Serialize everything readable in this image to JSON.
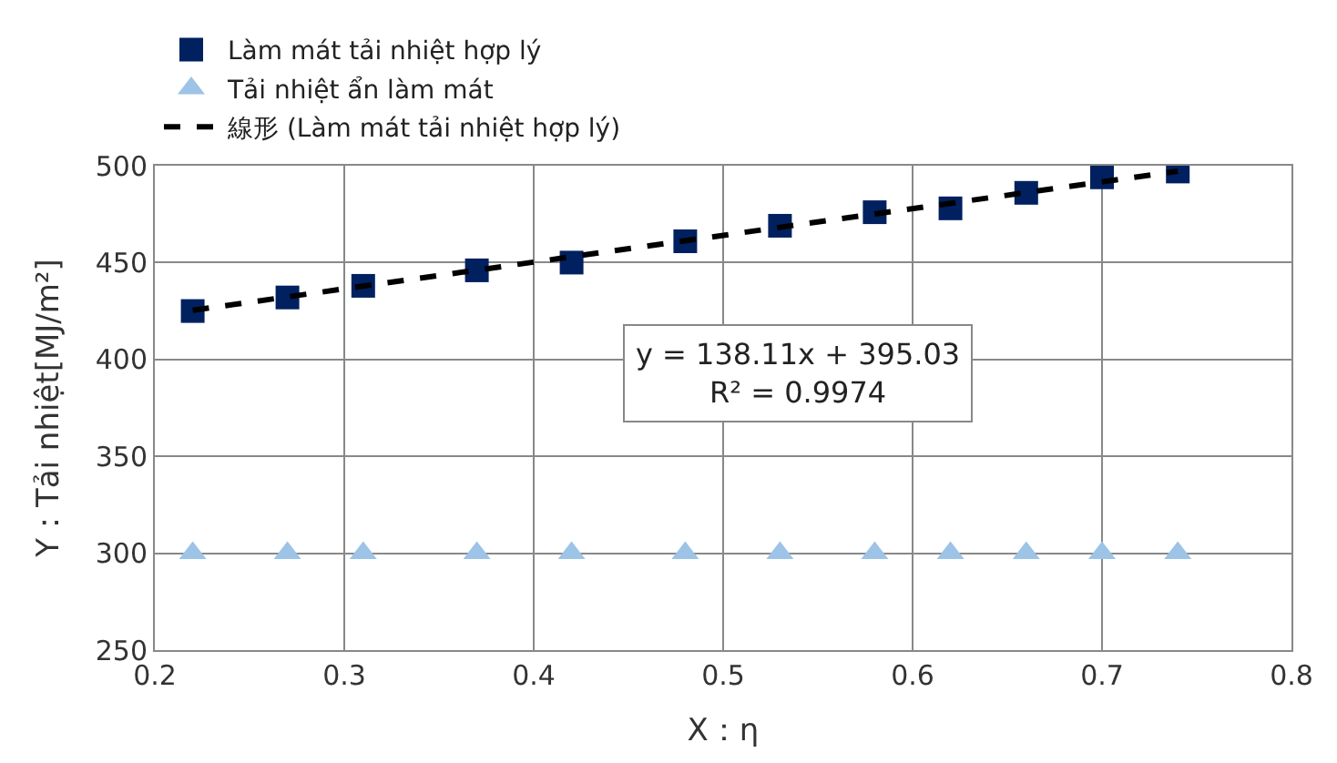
{
  "chart_data": {
    "type": "scatter",
    "xlabel": "X：η",
    "ylabel": "Y：Tải nhiệt[MJ/m²]",
    "xlim": [
      0.2,
      0.8
    ],
    "xticks": [
      0.2,
      0.3,
      0.4,
      0.5,
      0.6,
      0.7,
      0.8
    ],
    "ylim": [
      250,
      500
    ],
    "yticks": [
      250,
      300,
      350,
      400,
      450,
      500
    ],
    "grid": true,
    "legend": "top",
    "series": [
      {
        "name": "Làm mát tải nhiệt hợp lý",
        "color": "#002060",
        "marker": "square",
        "x": [
          0.22,
          0.27,
          0.31,
          0.37,
          0.42,
          0.48,
          0.53,
          0.58,
          0.62,
          0.66,
          0.7,
          0.74
        ],
        "values": [
          425,
          432,
          438,
          446,
          450,
          461,
          469,
          476,
          478,
          486,
          494,
          497
        ]
      },
      {
        "name": "Tải nhiệt ẩn làm mát",
        "color": "#9dc3e6",
        "marker": "triangle",
        "x": [
          0.22,
          0.27,
          0.31,
          0.37,
          0.42,
          0.48,
          0.53,
          0.58,
          0.62,
          0.66,
          0.7,
          0.74
        ],
        "values": [
          300,
          300,
          300,
          300,
          300,
          300,
          300,
          300,
          300,
          300,
          300,
          300
        ]
      },
      {
        "name": "線形 (Làm mát tải nhiệt hợp lý)",
        "type": "line",
        "color": "#000000",
        "line_style": "dashed",
        "marker": "none",
        "x": [
          0.22,
          0.74
        ],
        "values": [
          425.4,
          497.2
        ]
      }
    ],
    "annotations": [
      "y = 138.11x + 395.03\nR² = 0.9974"
    ]
  }
}
